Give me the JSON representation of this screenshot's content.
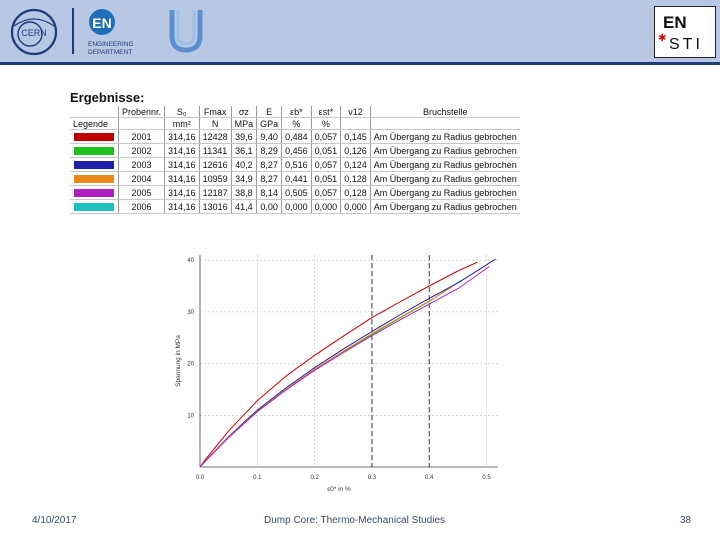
{
  "header": {
    "cern_logo_text": "CERN",
    "en_logo": {
      "big": "EN",
      "line1": "ENGINEERING",
      "line2": "DEPARTMENT"
    },
    "ensti_logo": {
      "line1": "EN",
      "line2": "STI"
    }
  },
  "results": {
    "title": "Ergebnisse:",
    "header_row1": [
      "Probennr.",
      "S₀",
      "Fmax",
      "σz",
      "E",
      "εb*",
      "εst*",
      "ν12",
      "Bruchstelle"
    ],
    "legend_label": "Legende",
    "header_row2": [
      "",
      "mm²",
      "N",
      "MPa",
      "GPa",
      "%",
      "%",
      "",
      ""
    ],
    "rows": [
      {
        "color": "#c00000",
        "cells": [
          "2001",
          "314,16",
          "12428",
          "39,6",
          "9,40",
          "0,484",
          "0,057",
          "0,145",
          "Am Übergang zu Radius gebrochen"
        ]
      },
      {
        "color": "#20c020",
        "cells": [
          "2002",
          "314,16",
          "11341",
          "36,1",
          "8,29",
          "0,456",
          "0,051",
          "0,126",
          "Am Übergang zu Radius gebrochen"
        ]
      },
      {
        "color": "#1f1fa8",
        "cells": [
          "2003",
          "314,16",
          "12616",
          "40,2",
          "8,27",
          "0,516",
          "0,057",
          "0,124",
          "Am Übergang zu Radius gebrochen"
        ]
      },
      {
        "color": "#e88a1a",
        "cells": [
          "2004",
          "314,16",
          "10959",
          "34,9",
          "8,27",
          "0,441",
          "0,051",
          "0,128",
          "Am Übergang zu Radius gebrochen"
        ]
      },
      {
        "color": "#b020c0",
        "cells": [
          "2005",
          "314,16",
          "12187",
          "38,8",
          "8,14",
          "0,505",
          "0,057",
          "0,128",
          "Am Übergang zu Radius gebrochen"
        ]
      },
      {
        "color": "#20c0c0",
        "cells": [
          "2006",
          "314,16",
          "13016",
          "41,4",
          "0,00",
          "0,000",
          "0,000",
          "0,000",
          "Am Übergang zu Radius gebrochen"
        ]
      }
    ]
  },
  "chart_data": {
    "type": "line",
    "xlabel": "ε0* in %",
    "ylabel": "Spannung in MPa",
    "xlim": [
      0,
      0.52
    ],
    "ylim": [
      0,
      41
    ],
    "xticks": [
      "0.0",
      "0.1",
      "0.2",
      "0.3",
      "0.4",
      "0.5"
    ],
    "yticks": [
      "10",
      "20",
      "30",
      "40"
    ],
    "grid": "dashed",
    "vlines": [
      0.3,
      0.4
    ],
    "series": [
      {
        "color": "#c00000",
        "x": [
          0,
          0.01,
          0.05,
          0.1,
          0.15,
          0.2,
          0.25,
          0.3,
          0.35,
          0.4,
          0.45,
          0.484
        ],
        "y": [
          0,
          1.5,
          7.0,
          12.8,
          17.6,
          21.6,
          25.3,
          28.9,
          32.0,
          35.0,
          37.9,
          39.6
        ]
      },
      {
        "color": "#20c020",
        "x": [
          0,
          0.01,
          0.05,
          0.1,
          0.15,
          0.2,
          0.25,
          0.3,
          0.35,
          0.4,
          0.456
        ],
        "y": [
          0,
          1.2,
          5.8,
          10.8,
          15.0,
          18.8,
          22.3,
          25.6,
          28.9,
          32.0,
          36.1
        ]
      },
      {
        "color": "#1f1fa8",
        "x": [
          0,
          0.01,
          0.05,
          0.1,
          0.15,
          0.2,
          0.25,
          0.3,
          0.35,
          0.4,
          0.45,
          0.516
        ],
        "y": [
          0,
          1.2,
          5.9,
          11.0,
          15.3,
          19.2,
          22.8,
          26.2,
          29.5,
          32.6,
          35.6,
          40.2
        ]
      },
      {
        "color": "#e88a1a",
        "x": [
          0,
          0.01,
          0.05,
          0.1,
          0.15,
          0.2,
          0.25,
          0.3,
          0.35,
          0.4,
          0.441
        ],
        "y": [
          0,
          1.2,
          5.8,
          10.8,
          15.0,
          18.9,
          22.4,
          25.8,
          29.0,
          32.1,
          34.9
        ]
      },
      {
        "color": "#b020c0",
        "x": [
          0,
          0.01,
          0.05,
          0.1,
          0.15,
          0.2,
          0.25,
          0.3,
          0.35,
          0.4,
          0.45,
          0.505
        ],
        "y": [
          0,
          1.2,
          5.7,
          10.7,
          14.9,
          18.7,
          22.1,
          25.4,
          28.5,
          31.5,
          34.5,
          38.8
        ]
      }
    ]
  },
  "footer": {
    "date": "4/10/2017",
    "title": "Dump Core: Thermo-Mechanical Studies",
    "page": "38"
  }
}
